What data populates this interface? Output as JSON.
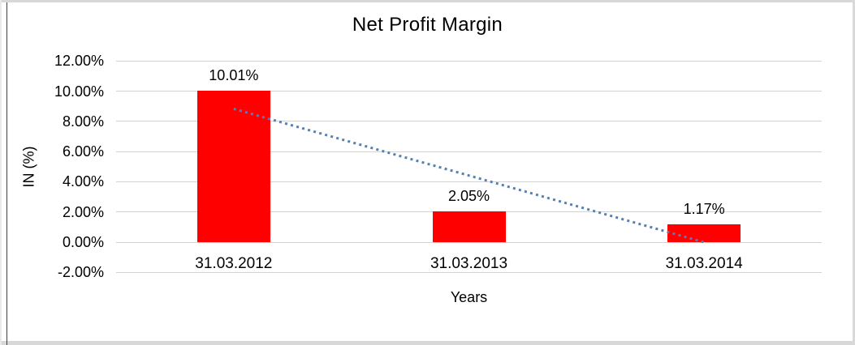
{
  "chart_data": {
    "type": "bar",
    "title": "Net Profit Margin",
    "xlabel": "Years",
    "ylabel": "IN (%)",
    "categories": [
      "31.03.2012",
      "31.03.2013",
      "31.03.2014"
    ],
    "values": [
      10.01,
      2.05,
      1.17
    ],
    "data_labels": [
      "10.01%",
      "2.05%",
      "1.17%"
    ],
    "ylim": [
      -2,
      12
    ],
    "ytick_step": 2,
    "ytick_labels": [
      "12.00%",
      "10.00%",
      "8.00%",
      "6.00%",
      "4.00%",
      "2.00%",
      "0.00%",
      "-2.00%"
    ],
    "ytick_values": [
      12,
      10,
      8,
      6,
      4,
      2,
      0,
      -2
    ],
    "grid": true,
    "legend": false,
    "bar_color": "#ff0000",
    "gridline_color": "#d3d3d3",
    "text_color": "#000000",
    "trendline": {
      "type": "linear",
      "style": "dotted",
      "color": "#4f81bd",
      "start_value": 8.83,
      "end_value": -0.01
    }
  }
}
